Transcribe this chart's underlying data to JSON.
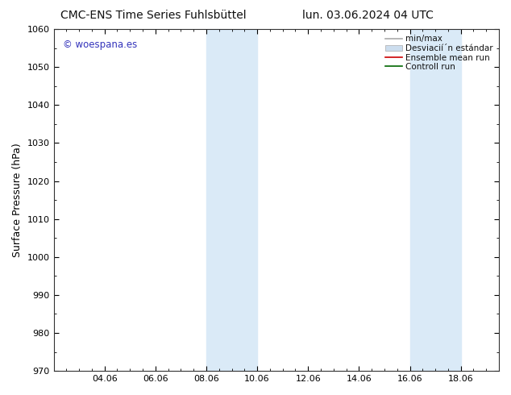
{
  "title_left": "CMC-ENS Time Series Fuhlsbüttel",
  "title_right": "lun. 03.06.2024 04 UTC",
  "ylabel": "Surface Pressure (hPa)",
  "ylim": [
    970,
    1060
  ],
  "yticks": [
    970,
    980,
    990,
    1000,
    1010,
    1020,
    1030,
    1040,
    1050,
    1060
  ],
  "x_tick_labels": [
    "04.06",
    "06.06",
    "08.06",
    "10.06",
    "12.06",
    "14.06",
    "16.06",
    "18.06"
  ],
  "x_tick_positions": [
    2,
    4,
    6,
    8,
    10,
    12,
    14,
    16
  ],
  "xlim": [
    0,
    17.5
  ],
  "shade_bands": [
    {
      "x_start": 6,
      "x_end": 8
    },
    {
      "x_start": 14,
      "x_end": 16
    }
  ],
  "shade_color": "#daeaf7",
  "background_color": "#ffffff",
  "watermark_text": "© woespana.es",
  "watermark_color": "#3333bb",
  "legend_minmax_color": "#aaaaaa",
  "legend_std_color": "#ccddee",
  "legend_mean_color": "#cc0000",
  "legend_control_color": "#006600",
  "title_fontsize": 10,
  "axis_label_fontsize": 9,
  "tick_fontsize": 8,
  "legend_fontsize": 7.5,
  "watermark_fontsize": 8.5
}
